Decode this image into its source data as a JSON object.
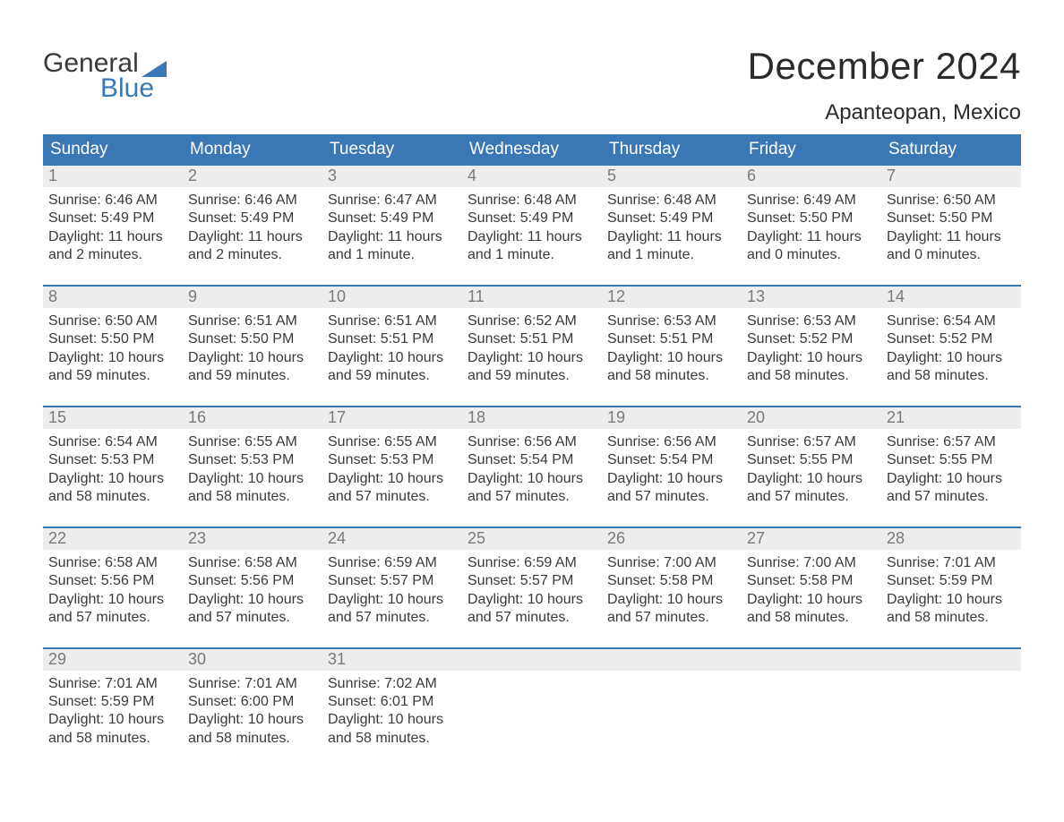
{
  "brand": {
    "word1": "General",
    "word2": "Blue",
    "accent_color": "#3a78b5",
    "text_color": "#3a3a3a"
  },
  "header": {
    "title": "December 2024",
    "location": "Apanteopan, Mexico"
  },
  "calendar": {
    "header_bg": "#3a78b5",
    "header_text_color": "#ffffff",
    "daynum_bg": "#ededed",
    "daynum_color": "#7a7a7a",
    "body_text_color": "#3a3a3a",
    "week_divider_color": "#3a78b5",
    "background_color": "#ffffff",
    "weekdays": [
      "Sunday",
      "Monday",
      "Tuesday",
      "Wednesday",
      "Thursday",
      "Friday",
      "Saturday"
    ],
    "labels": {
      "sunrise": "Sunrise:",
      "sunset": "Sunset:",
      "daylight": "Daylight:"
    },
    "weeks": [
      [
        {
          "n": "1",
          "sunrise": "6:46 AM",
          "sunset": "5:49 PM",
          "daylight": "11 hours and 2 minutes."
        },
        {
          "n": "2",
          "sunrise": "6:46 AM",
          "sunset": "5:49 PM",
          "daylight": "11 hours and 2 minutes."
        },
        {
          "n": "3",
          "sunrise": "6:47 AM",
          "sunset": "5:49 PM",
          "daylight": "11 hours and 1 minute."
        },
        {
          "n": "4",
          "sunrise": "6:48 AM",
          "sunset": "5:49 PM",
          "daylight": "11 hours and 1 minute."
        },
        {
          "n": "5",
          "sunrise": "6:48 AM",
          "sunset": "5:49 PM",
          "daylight": "11 hours and 1 minute."
        },
        {
          "n": "6",
          "sunrise": "6:49 AM",
          "sunset": "5:50 PM",
          "daylight": "11 hours and 0 minutes."
        },
        {
          "n": "7",
          "sunrise": "6:50 AM",
          "sunset": "5:50 PM",
          "daylight": "11 hours and 0 minutes."
        }
      ],
      [
        {
          "n": "8",
          "sunrise": "6:50 AM",
          "sunset": "5:50 PM",
          "daylight": "10 hours and 59 minutes."
        },
        {
          "n": "9",
          "sunrise": "6:51 AM",
          "sunset": "5:50 PM",
          "daylight": "10 hours and 59 minutes."
        },
        {
          "n": "10",
          "sunrise": "6:51 AM",
          "sunset": "5:51 PM",
          "daylight": "10 hours and 59 minutes."
        },
        {
          "n": "11",
          "sunrise": "6:52 AM",
          "sunset": "5:51 PM",
          "daylight": "10 hours and 59 minutes."
        },
        {
          "n": "12",
          "sunrise": "6:53 AM",
          "sunset": "5:51 PM",
          "daylight": "10 hours and 58 minutes."
        },
        {
          "n": "13",
          "sunrise": "6:53 AM",
          "sunset": "5:52 PM",
          "daylight": "10 hours and 58 minutes."
        },
        {
          "n": "14",
          "sunrise": "6:54 AM",
          "sunset": "5:52 PM",
          "daylight": "10 hours and 58 minutes."
        }
      ],
      [
        {
          "n": "15",
          "sunrise": "6:54 AM",
          "sunset": "5:53 PM",
          "daylight": "10 hours and 58 minutes."
        },
        {
          "n": "16",
          "sunrise": "6:55 AM",
          "sunset": "5:53 PM",
          "daylight": "10 hours and 58 minutes."
        },
        {
          "n": "17",
          "sunrise": "6:55 AM",
          "sunset": "5:53 PM",
          "daylight": "10 hours and 57 minutes."
        },
        {
          "n": "18",
          "sunrise": "6:56 AM",
          "sunset": "5:54 PM",
          "daylight": "10 hours and 57 minutes."
        },
        {
          "n": "19",
          "sunrise": "6:56 AM",
          "sunset": "5:54 PM",
          "daylight": "10 hours and 57 minutes."
        },
        {
          "n": "20",
          "sunrise": "6:57 AM",
          "sunset": "5:55 PM",
          "daylight": "10 hours and 57 minutes."
        },
        {
          "n": "21",
          "sunrise": "6:57 AM",
          "sunset": "5:55 PM",
          "daylight": "10 hours and 57 minutes."
        }
      ],
      [
        {
          "n": "22",
          "sunrise": "6:58 AM",
          "sunset": "5:56 PM",
          "daylight": "10 hours and 57 minutes."
        },
        {
          "n": "23",
          "sunrise": "6:58 AM",
          "sunset": "5:56 PM",
          "daylight": "10 hours and 57 minutes."
        },
        {
          "n": "24",
          "sunrise": "6:59 AM",
          "sunset": "5:57 PM",
          "daylight": "10 hours and 57 minutes."
        },
        {
          "n": "25",
          "sunrise": "6:59 AM",
          "sunset": "5:57 PM",
          "daylight": "10 hours and 57 minutes."
        },
        {
          "n": "26",
          "sunrise": "7:00 AM",
          "sunset": "5:58 PM",
          "daylight": "10 hours and 57 minutes."
        },
        {
          "n": "27",
          "sunrise": "7:00 AM",
          "sunset": "5:58 PM",
          "daylight": "10 hours and 58 minutes."
        },
        {
          "n": "28",
          "sunrise": "7:01 AM",
          "sunset": "5:59 PM",
          "daylight": "10 hours and 58 minutes."
        }
      ],
      [
        {
          "n": "29",
          "sunrise": "7:01 AM",
          "sunset": "5:59 PM",
          "daylight": "10 hours and 58 minutes."
        },
        {
          "n": "30",
          "sunrise": "7:01 AM",
          "sunset": "6:00 PM",
          "daylight": "10 hours and 58 minutes."
        },
        {
          "n": "31",
          "sunrise": "7:02 AM",
          "sunset": "6:01 PM",
          "daylight": "10 hours and 58 minutes."
        },
        {
          "empty": true
        },
        {
          "empty": true
        },
        {
          "empty": true
        },
        {
          "empty": true
        }
      ]
    ]
  }
}
